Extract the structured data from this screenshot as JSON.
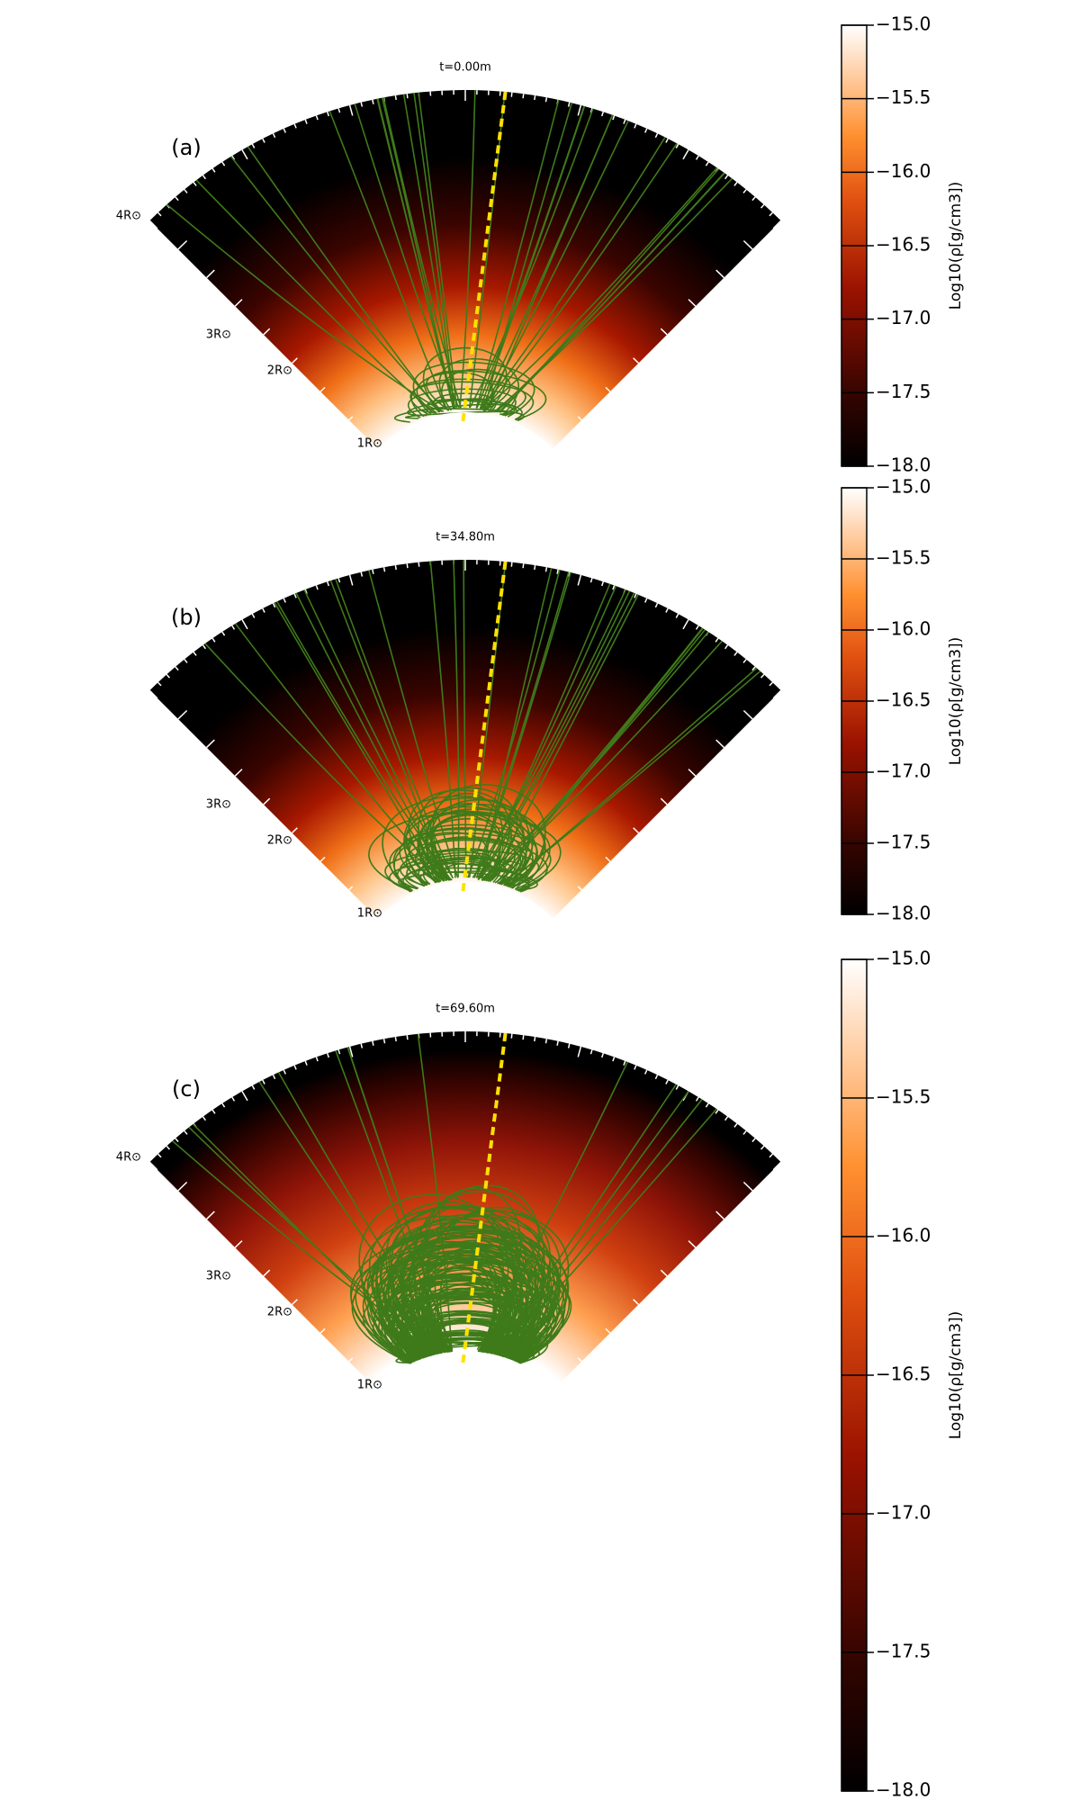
{
  "chart_data": [
    {
      "type": "density-wedge",
      "title": "t=0.00m",
      "panel_label": "(a)",
      "radial_labels": [
        "4R⊙",
        "3R⊙",
        "2R⊙",
        "1R⊙"
      ],
      "colorbar_label": "Log10(ρ[g/cm3])",
      "clim": [
        -18,
        -15
      ],
      "cticks": [
        {
          "value": -18,
          "label": "−18.0"
        },
        {
          "value": -17.5,
          "label": "−17.5"
        },
        {
          "value": -17,
          "label": "−17.0"
        },
        {
          "value": -16.5,
          "label": "−16.5"
        },
        {
          "value": -16,
          "label": "−16.0"
        },
        {
          "value": -15.5,
          "label": "−15.5"
        },
        {
          "value": -15,
          "label": "−15.0"
        }
      ]
    },
    {
      "type": "density-wedge",
      "title": "t=34.80m",
      "panel_label": "(b)",
      "radial_labels": [
        "3R⊙",
        "2R⊙",
        "1R⊙"
      ],
      "colorbar_label": "Log10(ρ[g/cm3])",
      "clim": [
        -18,
        -15
      ],
      "cticks": [
        {
          "value": -18,
          "label": "−18.0"
        },
        {
          "value": -17.5,
          "label": "−17.5"
        },
        {
          "value": -17,
          "label": "−17.0"
        },
        {
          "value": -16.5,
          "label": "−16.5"
        },
        {
          "value": -16,
          "label": "−16.0"
        },
        {
          "value": -15.5,
          "label": "−15.5"
        },
        {
          "value": -15,
          "label": "−15.0"
        }
      ]
    },
    {
      "type": "density-wedge",
      "title": "t=69.60m",
      "panel_label": "(c)",
      "radial_labels": [
        "4R⊙",
        "3R⊙",
        "2R⊙",
        "1R⊙"
      ],
      "colorbar_label": "Log10(ρ[g/cm3])",
      "clim": [
        -18,
        -15
      ],
      "cticks": [
        {
          "value": -18,
          "label": "−18.0"
        },
        {
          "value": -17.5,
          "label": "−17.5"
        },
        {
          "value": -17,
          "label": "−17.0"
        },
        {
          "value": -16.5,
          "label": "−16.5"
        },
        {
          "value": -16,
          "label": "−16.0"
        },
        {
          "value": -15.5,
          "label": "−15.5"
        },
        {
          "value": -15,
          "label": "−15.0"
        }
      ]
    }
  ]
}
